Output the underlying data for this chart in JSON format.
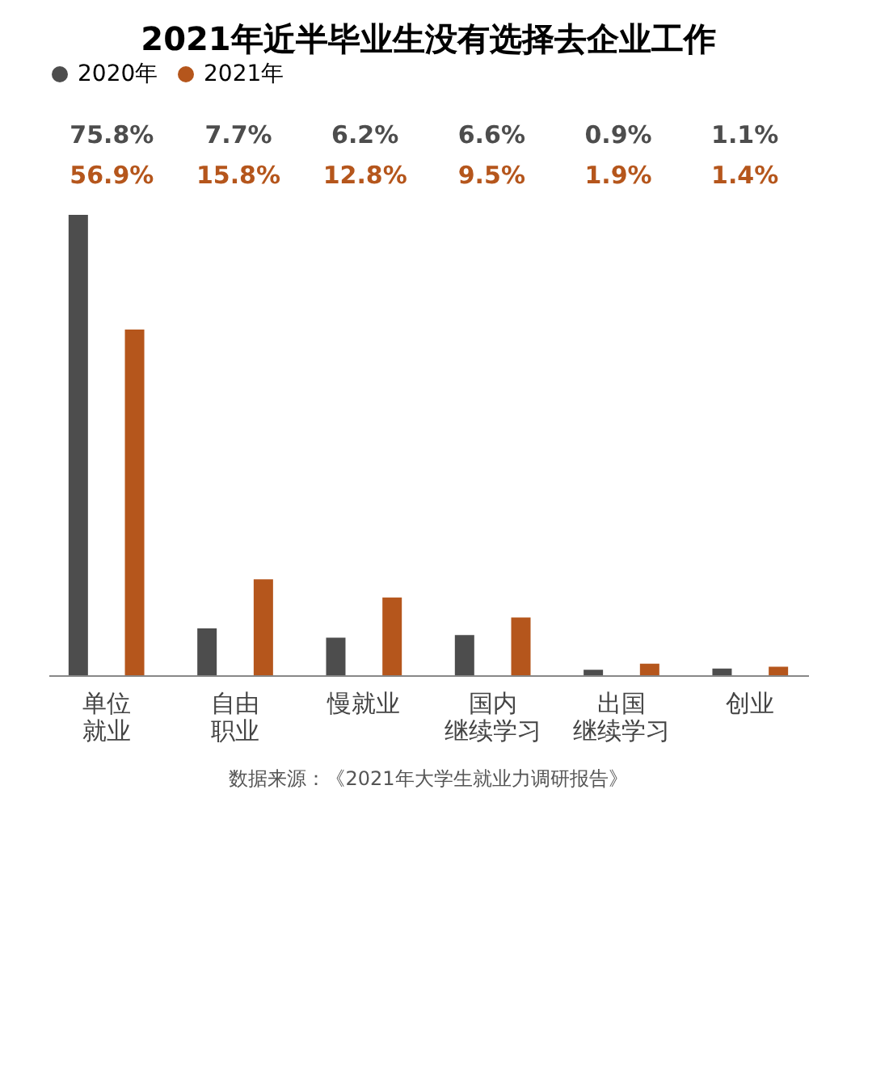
{
  "chart_data": {
    "type": "bar",
    "title": "2021年近半毕业生没有选择去企业工作",
    "categories": [
      "单位就业",
      "自由职业",
      "慢就业",
      "国内继续学习",
      "出国继续学习",
      "创业"
    ],
    "series": [
      {
        "name": "2020年",
        "color": "#4d4d4d",
        "values": [
          75.8,
          7.7,
          6.2,
          6.6,
          0.9,
          1.1
        ],
        "value_labels": [
          "75.8%",
          "7.7%",
          "6.2%",
          "6.6%",
          "0.9%",
          "1.1%"
        ]
      },
      {
        "name": "2021年",
        "color": "#b5561c",
        "values": [
          56.9,
          15.8,
          12.8,
          9.5,
          1.9,
          1.4
        ],
        "value_labels": [
          "56.9%",
          "15.8%",
          "12.8%",
          "9.5%",
          "1.9%",
          "1.4%"
        ]
      }
    ],
    "legend": "top",
    "grid": false,
    "annotations": [
      "数据来源：《2021年大学生就业力调研报告》"
    ]
  }
}
